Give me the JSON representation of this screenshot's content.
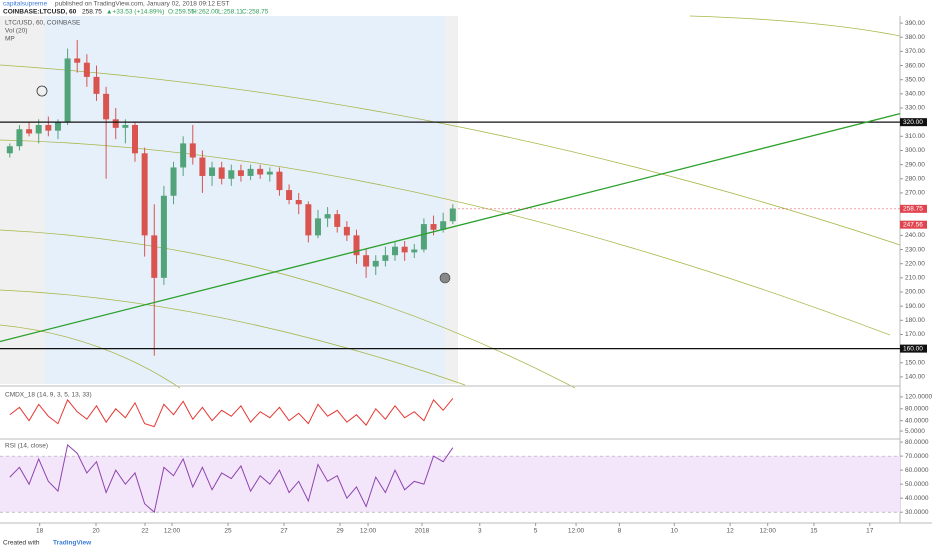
{
  "header": {
    "author": "capitalsupreme",
    "published": "published on TradingView.com, January 02, 2018 09:12 EST",
    "symbol": "COINBASE:LTCUSD, 60",
    "last": "258.75",
    "change": "▲+33.53 (+14.89%)",
    "open": "O:259.55",
    "high": "H:262.00",
    "low": "L:258.11",
    "close": "C:258.75"
  },
  "legend": [
    "LTC/USD, 60, COINBASE",
    "Vol (20)",
    "MP"
  ],
  "footer": {
    "created": "Created with",
    "brand": "TradingView"
  },
  "chart_data": [
    {
      "type": "candlestick",
      "title": "LTC/USD, 60, COINBASE",
      "colors": {
        "up": "#53a37a",
        "down": "#d9534f"
      },
      "ohlc": [
        [
          298,
          305,
          295,
          303
        ],
        [
          303,
          318,
          300,
          315
        ],
        [
          315,
          320,
          310,
          312
        ],
        [
          312,
          322,
          305,
          318
        ],
        [
          318,
          324,
          310,
          314
        ],
        [
          314,
          322,
          308,
          320
        ],
        [
          320,
          372,
          318,
          365
        ],
        [
          365,
          378,
          355,
          362
        ],
        [
          362,
          368,
          345,
          352
        ],
        [
          352,
          360,
          335,
          340
        ],
        [
          340,
          345,
          280,
          322
        ],
        [
          322,
          330,
          308,
          316
        ],
        [
          316,
          322,
          305,
          318
        ],
        [
          318,
          320,
          292,
          298
        ],
        [
          298,
          302,
          225,
          240
        ],
        [
          240,
          262,
          155,
          210
        ],
        [
          210,
          275,
          205,
          268
        ],
        [
          268,
          292,
          262,
          288
        ],
        [
          288,
          310,
          282,
          305
        ],
        [
          305,
          318,
          290,
          295
        ],
        [
          295,
          300,
          270,
          282
        ],
        [
          282,
          292,
          275,
          288
        ],
        [
          288,
          292,
          276,
          280
        ],
        [
          280,
          290,
          275,
          286
        ],
        [
          286,
          290,
          278,
          282
        ],
        [
          282,
          290,
          279,
          287
        ],
        [
          287,
          290,
          280,
          283
        ],
        [
          283,
          288,
          278,
          285
        ],
        [
          285,
          288,
          268,
          272
        ],
        [
          272,
          276,
          262,
          265
        ],
        [
          265,
          270,
          255,
          262
        ],
        [
          262,
          264,
          235,
          240
        ],
        [
          240,
          258,
          238,
          252
        ],
        [
          252,
          260,
          246,
          255
        ],
        [
          255,
          258,
          242,
          246
        ],
        [
          246,
          250,
          236,
          240
        ],
        [
          240,
          244,
          220,
          226
        ],
        [
          226,
          230,
          210,
          218
        ],
        [
          218,
          226,
          212,
          222
        ],
        [
          222,
          232,
          218,
          226
        ],
        [
          226,
          236,
          222,
          232
        ],
        [
          232,
          236,
          222,
          228
        ],
        [
          228,
          234,
          224,
          230
        ],
        [
          230,
          252,
          228,
          248
        ],
        [
          248,
          254,
          240,
          244
        ],
        [
          244,
          256,
          242,
          250
        ],
        [
          250,
          262,
          248,
          259
        ]
      ],
      "xlim": [
        -0.5,
        92.5
      ],
      "xticks": [
        {
          "value": 3.1,
          "label": "18"
        },
        {
          "value": 8.95,
          "label": "20"
        },
        {
          "value": 14.04,
          "label": "22"
        },
        {
          "value": 16.84,
          "label": "12:00"
        },
        {
          "value": 22.66,
          "label": "25"
        },
        {
          "value": 28.47,
          "label": "27"
        },
        {
          "value": 34.29,
          "label": "29"
        },
        {
          "value": 37.2,
          "label": "12:00"
        },
        {
          "value": 42.8,
          "label": "2018"
        },
        {
          "value": 48.8,
          "label": "3"
        },
        {
          "value": 54.6,
          "label": "5"
        },
        {
          "value": 58.8,
          "label": "12:00"
        },
        {
          "value": 63.3,
          "label": "8"
        },
        {
          "value": 69.0,
          "label": "10"
        },
        {
          "value": 74.8,
          "label": "12"
        },
        {
          "value": 78.7,
          "label": "12:00"
        },
        {
          "value": 83.5,
          "label": "15"
        },
        {
          "value": 89.3,
          "label": "17"
        }
      ],
      "ylim": [
        135,
        395
      ],
      "yticks": [
        {
          "value": 390,
          "label": "390.00"
        },
        {
          "value": 380,
          "label": "380.00"
        },
        {
          "value": 370,
          "label": "370.00"
        },
        {
          "value": 360,
          "label": "360.00"
        },
        {
          "value": 350,
          "label": "350.00"
        },
        {
          "value": 340,
          "label": "340.00"
        },
        {
          "value": 330,
          "label": "330.00"
        },
        {
          "value": 310,
          "label": "310.00"
        },
        {
          "value": 300,
          "label": "300.00"
        },
        {
          "value": 290,
          "label": "290.00"
        },
        {
          "value": 280,
          "label": "280.00"
        },
        {
          "value": 270,
          "label": "270.00"
        },
        {
          "value": 240,
          "label": "240.00"
        },
        {
          "value": 230,
          "label": "230.00"
        },
        {
          "value": 220,
          "label": "220.00"
        },
        {
          "value": 210,
          "label": "210.00"
        },
        {
          "value": 200,
          "label": "200.00"
        },
        {
          "value": 190,
          "label": "190.00"
        },
        {
          "value": 180,
          "label": "180.00"
        },
        {
          "value": 170,
          "label": "170.00"
        },
        {
          "value": 150,
          "label": "150.00"
        },
        {
          "value": 140,
          "label": "140.00"
        }
      ],
      "hlines": [
        {
          "value": 320,
          "label": "320.00"
        },
        {
          "value": 160,
          "label": "160.00"
        }
      ],
      "trendline": [
        165,
        326
      ],
      "price_labels": [
        {
          "value": 258.75,
          "label": "258.75",
          "color": "#e0454f"
        },
        {
          "value": 247.56,
          "label": "247.56",
          "color": "#e0454f"
        }
      ]
    },
    {
      "type": "line",
      "title": "CMDX_18 (14, 9, 3, 5, 13, 33)",
      "color": "#e53935",
      "values": [
        60,
        85,
        40,
        95,
        55,
        30,
        110,
        70,
        45,
        90,
        35,
        80,
        50,
        100,
        30,
        20,
        95,
        60,
        105,
        45,
        85,
        40,
        75,
        55,
        90,
        35,
        70,
        50,
        85,
        40,
        65,
        30,
        95,
        55,
        75,
        35,
        60,
        25,
        80,
        45,
        90,
        50,
        70,
        40,
        110,
        75,
        115
      ],
      "ylim": [
        -15,
        150
      ],
      "yticks": [
        {
          "value": 120,
          "label": "120.0000"
        },
        {
          "value": 80,
          "label": "80.0000"
        },
        {
          "value": 40,
          "label": "40.0000"
        },
        {
          "value": 5,
          "label": "5.0000"
        }
      ]
    },
    {
      "type": "line",
      "title": "RSI (14, close)",
      "color": "#8e44ad",
      "band": [
        30,
        70
      ],
      "values": [
        55,
        62,
        50,
        68,
        52,
        45,
        78,
        72,
        58,
        66,
        44,
        60,
        50,
        58,
        36,
        30,
        62,
        56,
        68,
        48,
        62,
        46,
        58,
        54,
        63,
        45,
        56,
        50,
        60,
        44,
        52,
        38,
        64,
        52,
        56,
        40,
        48,
        34,
        55,
        44,
        60,
        46,
        52,
        50,
        70,
        66,
        76
      ],
      "ylim": [
        23,
        81.5
      ],
      "yticks": [
        {
          "value": 80,
          "label": "80.0000"
        },
        {
          "value": 70,
          "label": "70.0000"
        },
        {
          "value": 60,
          "label": "60.0000"
        },
        {
          "value": 50,
          "label": "50.0000"
        },
        {
          "value": 40,
          "label": "40.0000"
        },
        {
          "value": 30,
          "label": "30.0000"
        }
      ]
    }
  ]
}
